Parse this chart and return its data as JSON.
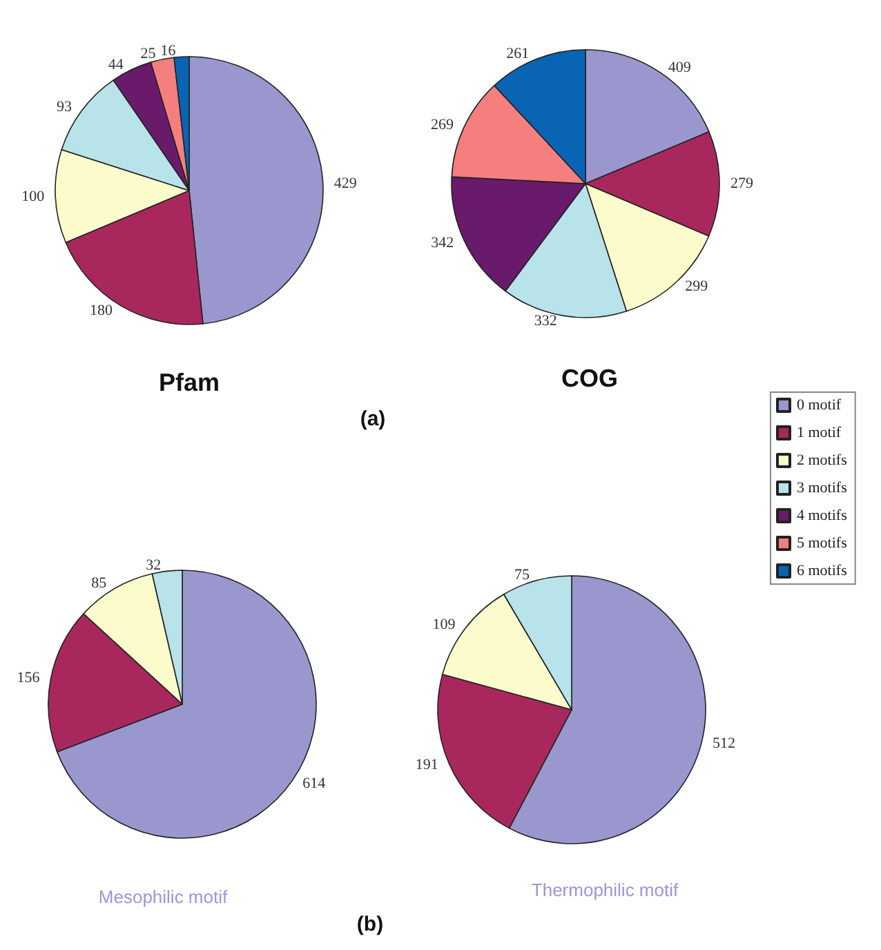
{
  "chart_data": [
    {
      "type": "pie",
      "title": "Pfam",
      "annotations": [
        "(a)"
      ],
      "categories": [
        null,
        null,
        null,
        null,
        null,
        null,
        null
      ],
      "values": [
        429,
        180,
        100,
        93,
        44,
        25,
        16
      ],
      "colors": [
        "#9a97cf",
        "#a8285e",
        "#fbfbcc",
        "#b8e3ea",
        "#6a1a6a",
        "#f57f7f",
        "#0a64b4"
      ],
      "data_labels": true
    },
    {
      "type": "pie",
      "title": "COG",
      "categories": [
        "0 motif",
        "1 motif",
        "2 motifs",
        "3 motifs",
        "4 motifs",
        "5 motifs",
        "6 motifs"
      ],
      "values": [
        409,
        279,
        299,
        332,
        342,
        269,
        261
      ],
      "colors": [
        "#9a97cf",
        "#a8285e",
        "#fbfbcc",
        "#b8e3ea",
        "#6a1a6a",
        "#f57f7f",
        "#0a64b4"
      ],
      "data_labels": true,
      "legend": "right"
    },
    {
      "type": "pie",
      "title": "Mesophilic motif",
      "annotations": [
        "(b)"
      ],
      "categories": [
        null,
        null,
        null,
        null
      ],
      "values": [
        614,
        156,
        85,
        32
      ],
      "colors": [
        "#9a97cf",
        "#a8285e",
        "#fbfbcc",
        "#b8e3ea"
      ],
      "data_labels": true
    },
    {
      "type": "pie",
      "title": "Thermophilic motif",
      "categories": [
        null,
        null,
        null,
        null
      ],
      "values": [
        512,
        191,
        109,
        75
      ],
      "colors": [
        "#9a97cf",
        "#a8285e",
        "#fbfbcc",
        "#b8e3ea"
      ],
      "data_labels": true
    }
  ]
}
